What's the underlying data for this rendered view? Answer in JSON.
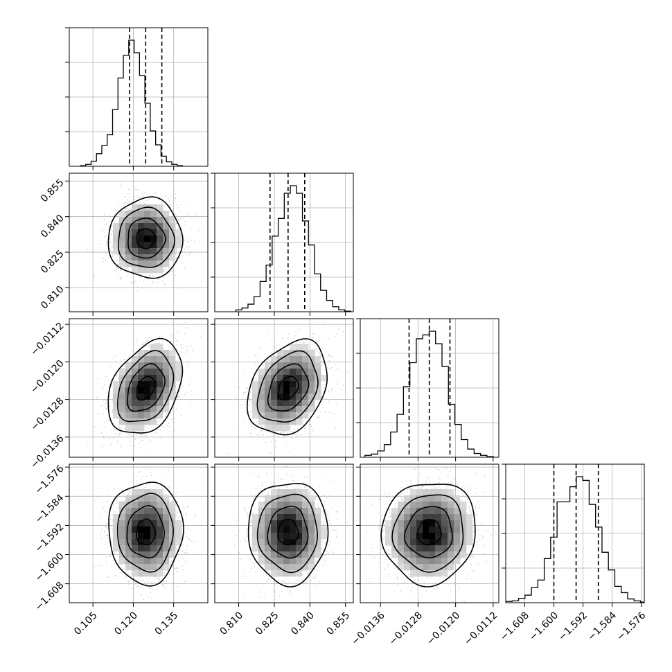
{
  "chart_data": {
    "type": "corner",
    "title": "",
    "parameters": [
      {
        "key": "p0",
        "range": [
          0.0962,
          0.1477
        ],
        "ticks": [
          0.105,
          0.12,
          0.135
        ],
        "tick_labels": [
          "0.105",
          "0.120",
          "0.135"
        ],
        "quantiles": [
          0.1186,
          0.1246,
          0.1306
        ],
        "hist": {
          "edges_start": 0.1003,
          "bin_width": 0.002,
          "counts": [
            0.005,
            0.015,
            0.04,
            0.1,
            0.165,
            0.25,
            0.45,
            0.7,
            0.88,
            1.0,
            0.9,
            0.72,
            0.5,
            0.28,
            0.17,
            0.08,
            0.035,
            0.015,
            0.005
          ]
        }
      },
      {
        "key": "p1",
        "range": [
          0.7999,
          0.8583
        ],
        "ticks": [
          0.81,
          0.825,
          0.84,
          0.855
        ],
        "tick_labels": [
          "0.810",
          "0.825",
          "0.840",
          "0.855"
        ],
        "quantiles": [
          0.8232,
          0.8308,
          0.8378
        ],
        "hist": {
          "edges_start": 0.8088,
          "bin_width": 0.00255,
          "counts": [
            0.015,
            0.03,
            0.06,
            0.12,
            0.24,
            0.37,
            0.6,
            0.74,
            0.94,
            1.0,
            0.94,
            0.72,
            0.53,
            0.3,
            0.17,
            0.09,
            0.04,
            0.015,
            0.005
          ]
        }
      },
      {
        "key": "p2",
        "range": [
          -0.01403,
          -0.01108
        ],
        "ticks": [
          -0.0136,
          -0.0128,
          -0.012,
          -0.0112
        ],
        "tick_labels": [
          "−0.0136",
          "−0.0128",
          "−0.0120",
          "−0.0112"
        ],
        "quantiles": [
          -0.01299,
          -0.01256,
          -0.01212
        ],
        "hist": {
          "edges_start": -0.01393,
          "bin_width": 0.0001367,
          "counts": [
            0.015,
            0.025,
            0.05,
            0.1,
            0.2,
            0.34,
            0.56,
            0.75,
            0.94,
            0.97,
            1.0,
            0.9,
            0.72,
            0.42,
            0.26,
            0.14,
            0.065,
            0.03,
            0.015,
            0.005
          ]
        }
      },
      {
        "key": "p3",
        "range": [
          -1.6132,
          -1.5752
        ],
        "ticks": [
          -1.608,
          -1.6,
          -1.592,
          -1.584,
          -1.576
        ],
        "tick_labels": [
          "−1.608",
          "−1.600",
          "−1.592",
          "−1.584",
          "−1.576"
        ],
        "quantiles": [
          -1.6,
          -1.5939,
          -1.5878
        ],
        "hist": {
          "edges_start": -1.6132,
          "bin_width": 0.00176,
          "counts": [
            0.01,
            0.015,
            0.035,
            0.06,
            0.12,
            0.18,
            0.35,
            0.52,
            0.8,
            0.8,
            0.92,
            1.0,
            0.97,
            0.78,
            0.6,
            0.4,
            0.26,
            0.13,
            0.08,
            0.03,
            0.015,
            0.005
          ]
        }
      }
    ],
    "correlations": {
      "1,0": 0.0,
      "2,0": 0.35,
      "2,1": 0.3,
      "3,0": 0.0,
      "3,1": 0.0,
      "3,2": 0.05
    },
    "contour_levels_sigma": [
      0.5,
      1.0,
      1.5,
      2.0
    ],
    "grid": true,
    "line_color": "#000000",
    "scatter_color": "#b4b4b4",
    "grid_color": "#b0b0b0"
  }
}
